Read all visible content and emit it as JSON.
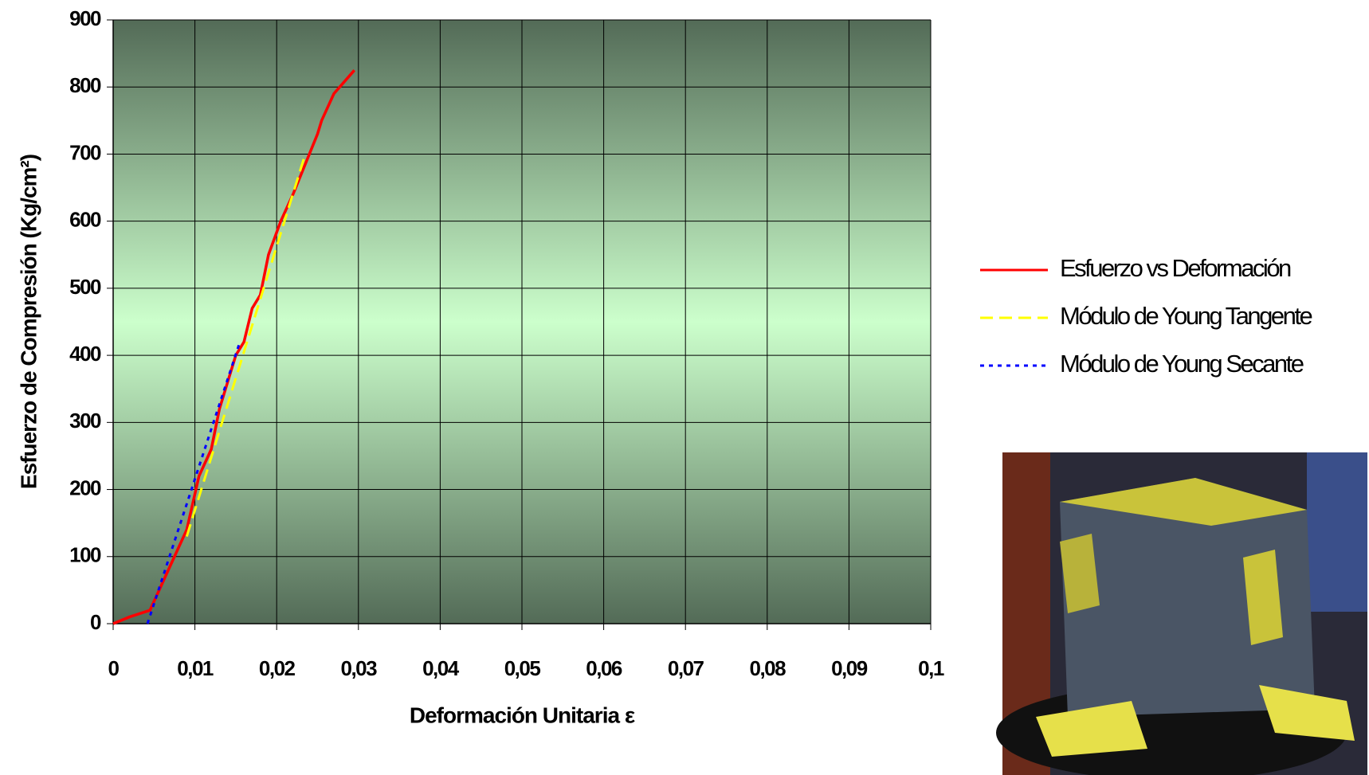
{
  "chart_data": {
    "type": "line",
    "x_label": "Deformación Unitaria ε",
    "y_label": "Esfuerzo de Compresión (Kg/cm²)",
    "xlim": [
      0,
      0.1
    ],
    "ylim": [
      0,
      900
    ],
    "xticks": [
      0,
      {
        "value": 0.01,
        "label": "0,01"
      },
      {
        "value": 0.02,
        "label": "0,02"
      },
      {
        "value": 0.03,
        "label": "0,03"
      },
      {
        "value": 0.04,
        "label": "0,04"
      },
      {
        "value": 0.05,
        "label": "0,05"
      },
      {
        "value": 0.06,
        "label": "0,06"
      },
      {
        "value": 0.07,
        "label": "0,07"
      },
      {
        "value": 0.08,
        "label": "0,08"
      },
      {
        "value": 0.09,
        "label": "0,09"
      },
      {
        "value": 0.1,
        "label": "0,1"
      }
    ],
    "yticks": [
      0,
      100,
      200,
      300,
      400,
      500,
      600,
      700,
      800,
      900
    ],
    "grid": true,
    "series": [
      {
        "name": "Esfuerzo vs Deformación",
        "color": "#ff0000",
        "style": "solid",
        "x": [
          0,
          0.002,
          0.0045,
          0.006,
          0.0075,
          0.009,
          0.0105,
          0.012,
          0.013,
          0.014,
          0.015,
          0.016,
          0.017,
          0.018,
          0.019,
          0.0205,
          0.022,
          0.023,
          0.024,
          0.025,
          0.0255,
          0.027,
          0.0295
        ],
        "values": [
          0,
          10,
          20,
          60,
          100,
          140,
          220,
          260,
          320,
          360,
          400,
          420,
          470,
          490,
          550,
          600,
          640,
          670,
          700,
          730,
          750,
          790,
          825
        ]
      },
      {
        "name": "Módulo de Young Tangente",
        "color": "#ffff00",
        "style": "dashed",
        "x": [
          0.009,
          0.0235
        ],
        "values": [
          130,
          700
        ]
      },
      {
        "name": "Módulo de Young Secante",
        "color": "#0000ff",
        "style": "dotted",
        "x": [
          0.0042,
          0.0155
        ],
        "values": [
          0,
          420
        ]
      }
    ]
  }
}
